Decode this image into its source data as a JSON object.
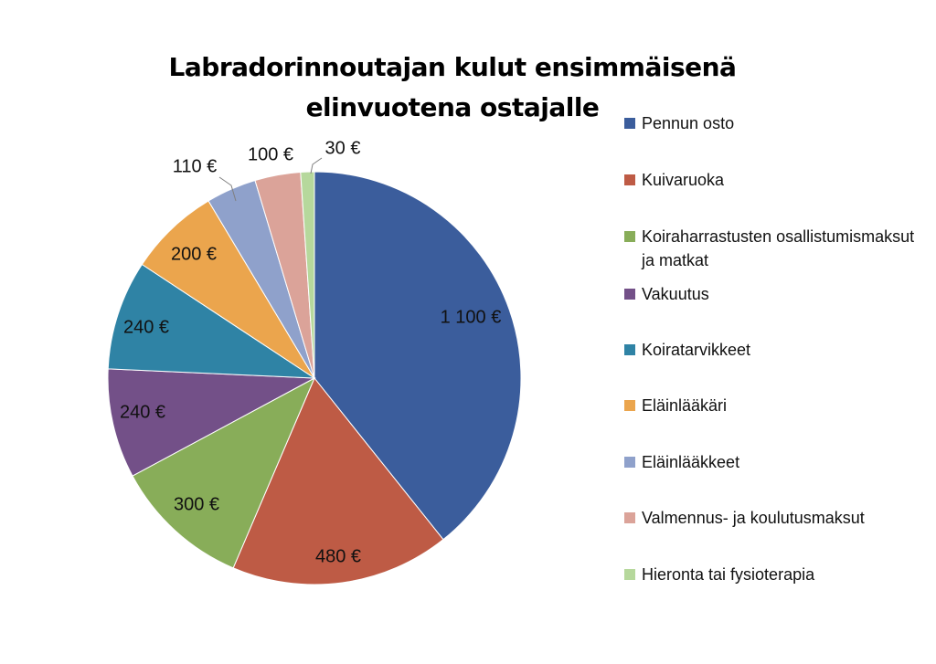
{
  "chart_data": {
    "type": "pie",
    "title": "Labradorinnoutajan kulut ensimmäisenä elinvuotena ostajalle",
    "currency": "€",
    "legend_position": "right",
    "slices": [
      {
        "label": "Pennun osto",
        "value": 1100,
        "display": "1 100 €",
        "color": "#3B5D9C"
      },
      {
        "label": "Kuivaruoka",
        "value": 480,
        "display": "480 €",
        "color": "#BE5B45"
      },
      {
        "label": "Koiraharrastusten osallistumismaksut ja matkat",
        "value": 300,
        "display": "300 €",
        "color": "#88AD59"
      },
      {
        "label": "Vakuutus",
        "value": 240,
        "display": "240 €",
        "color": "#735088"
      },
      {
        "label": "Koiratarvikkeet",
        "value": 240,
        "display": "240 €",
        "color": "#2F83A5"
      },
      {
        "label": "Eläinlääkäri",
        "value": 200,
        "display": "200 €",
        "color": "#EBA54D"
      },
      {
        "label": "Eläinlääkkeet",
        "value": 110,
        "display": "110 €",
        "color": "#8FA1CB"
      },
      {
        "label": "Valmennus- ja koulutusmaksut",
        "value": 100,
        "display": "100 €",
        "color": "#DBA399"
      },
      {
        "label": "Hieronta tai fysioterapia",
        "value": 30,
        "display": "30 €",
        "color": "#B6D89C"
      }
    ]
  }
}
